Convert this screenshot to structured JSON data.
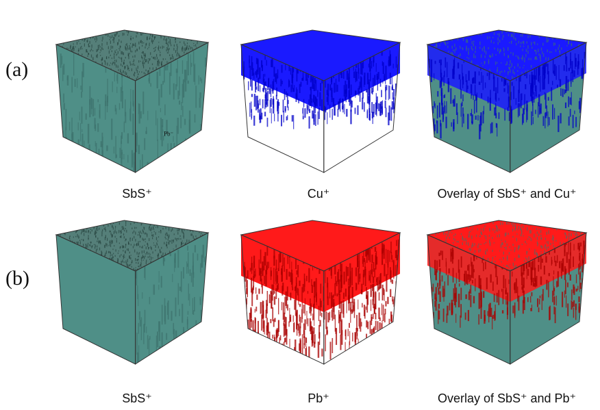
{
  "rows": [
    {
      "label": "(a)",
      "panels": [
        {
          "caption": "SbS⁺",
          "fill": "teal",
          "inner_label": "Pb⁻"
        },
        {
          "caption": "Cu⁺",
          "fill": "blue"
        },
        {
          "caption": "Overlay of SbS⁺ and Cu⁺",
          "fill": "overlay-blue"
        }
      ]
    },
    {
      "label": "(b)",
      "panels": [
        {
          "caption": "SbS⁺",
          "fill": "teal"
        },
        {
          "caption": "Pb⁺",
          "fill": "red"
        },
        {
          "caption": "Overlay of SbS⁺ and Pb⁺",
          "fill": "overlay-red"
        }
      ]
    }
  ],
  "colors": {
    "teal": "#4f8f87",
    "teal_dark": "#3d736d",
    "teal_top": "#557f79",
    "blue": "#1a1aff",
    "blue_dark": "#0000c8",
    "red": "#ff1a1a",
    "red_dark": "#a80000",
    "edge": "#333333"
  }
}
